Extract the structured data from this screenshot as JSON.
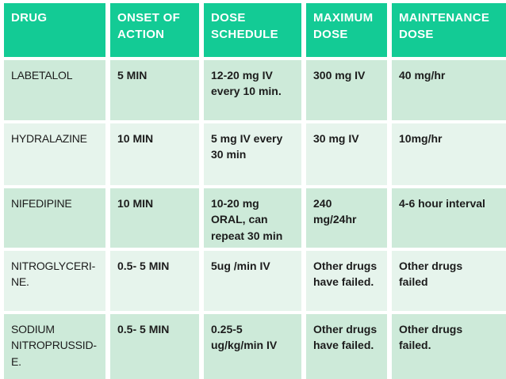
{
  "colors": {
    "header_bg": "#13cb95",
    "band_dark_bg": "#cdead9",
    "band_light_bg": "#e6f4ec",
    "header_text": "#ffffff",
    "body_text": "#1c1c1c",
    "gap": "#ffffff"
  },
  "table": {
    "headers": [
      "DRUG",
      "ONSET OF\nACTION",
      "DOSE\nSCHEDULE",
      "MAXIMUM\nDOSE",
      "MAINTENANCE\nDOSE"
    ],
    "rows": [
      {
        "drug": "LABETALOL",
        "onset_of_action": "5 MIN",
        "dose_schedule": "12-20 mg IV\nevery 10 min.",
        "maximum_dose": "300 mg IV",
        "maintenance_dose": "40 mg/hr"
      },
      {
        "drug": "HYDRALAZINE",
        "onset_of_action": "10 MIN",
        "dose_schedule": "5 mg IV every\n30 min",
        "maximum_dose": "30 mg IV",
        "maintenance_dose": "10mg/hr"
      },
      {
        "drug": "NIFEDIPINE",
        "onset_of_action": "10 MIN",
        "dose_schedule": "10-20 mg\nORAL, can\nrepeat 30 min",
        "maximum_dose": "240\nmg/24hr",
        "maintenance_dose": "4-6 hour interval"
      },
      {
        "drug": "NITROGLYCERI-\nNE.",
        "onset_of_action": "0.5- 5 MIN",
        "dose_schedule": "5ug /min IV",
        "maximum_dose": "Other drugs\nhave failed.",
        "maintenance_dose": "Other drugs\nfailed"
      },
      {
        "drug": "SODIUM\nNITROPRUSSID-\nE.",
        "onset_of_action": "0.5- 5 MIN",
        "dose_schedule": "0.25-5\nug/kg/min IV",
        "maximum_dose": "Other drugs\nhave failed.",
        "maintenance_dose": "Other drugs\nfailed."
      }
    ]
  }
}
